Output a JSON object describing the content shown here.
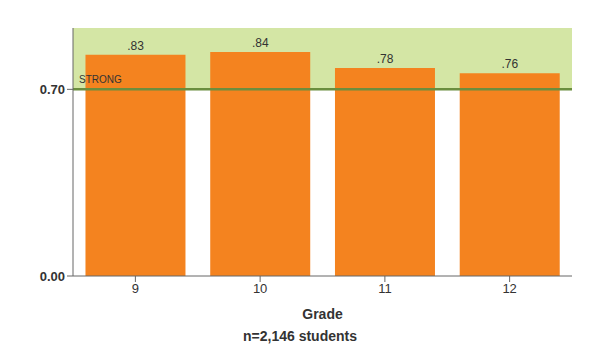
{
  "chart_data": {
    "type": "bar",
    "categories": [
      "9",
      "10",
      "11",
      "12"
    ],
    "values": [
      0.83,
      0.84,
      0.78,
      0.76
    ],
    "value_labels": [
      ".83",
      ".84",
      ".78",
      ".76"
    ],
    "data_labels": true,
    "color": "#F4831F",
    "xlabel": "Grade",
    "ylim": [
      0.0,
      0.93
    ],
    "yticks": [
      {
        "value": 0.0,
        "label": "0.00"
      },
      {
        "value": 0.7,
        "label": "0.70"
      }
    ],
    "threshold": {
      "value": 0.7,
      "label": "STRONG",
      "color": "#6B8E3E",
      "shade_color": "#D4E6A5"
    },
    "annotations": [
      {
        "text": "n=2,146 students"
      }
    ]
  }
}
